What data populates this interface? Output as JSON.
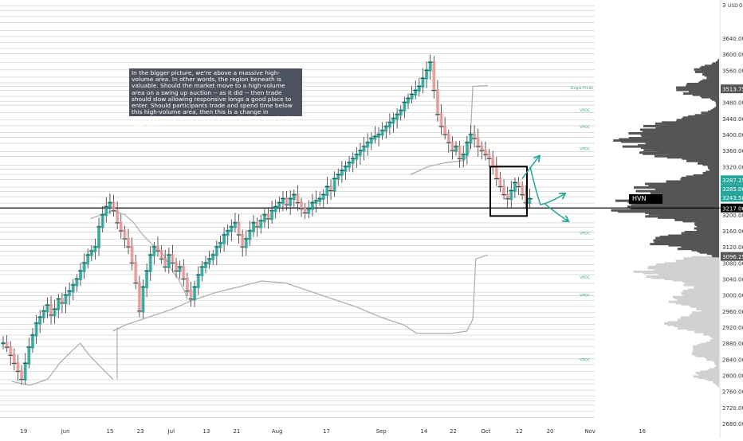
{
  "annotation_text": "In the bigger picture, we're above a massive high-volume area. In other words, the region beneath is valuable. Should the market move to a high-volume area on a swing up auction -- as it did -- then trade should slow allowing responsive longs a good place to enter. Should participants trade and spend time below this high-volume area, then this is a change in perception and longs should be avoided, at least in the near term.",
  "hvn_label": "HVN",
  "single_prints_label": "Single Prints",
  "vpoc_label": "VPOC",
  "top_right_label": "3",
  "currency_label": "USD",
  "top_right_value": "0",
  "colors": {
    "up_candle": "#26a69a",
    "down_candle": "#ef9a9a",
    "profile_dark": "#555555",
    "profile_light": "#d0d0d0",
    "va_line": "#b0b0b0",
    "level_line": "#c8c8c8",
    "accent_teal": "#26a69a"
  },
  "chart_data": {
    "type": "candlestick",
    "y_axis": {
      "range": [
        2670,
        3740
      ],
      "tick_labels": [
        "3640.00",
        "3600.00",
        "3560.00",
        "3520.00",
        "3480.00",
        "3440.00",
        "3400.00",
        "3360.00",
        "3320.00",
        "3280.00",
        "3240.00",
        "3200.00",
        "3160.00",
        "3120.00",
        "3080.00",
        "3040.00",
        "3000.00",
        "2960.00",
        "2920.00",
        "2880.00",
        "2840.00",
        "2800.00",
        "2760.00",
        "2720.00",
        "2680.00"
      ],
      "tick_values": [
        3640,
        3600,
        3560,
        3520,
        3480,
        3440,
        3400,
        3360,
        3320,
        3280,
        3240,
        3200,
        3160,
        3120,
        3080,
        3040,
        3000,
        2960,
        2920,
        2880,
        2840,
        2800,
        2760,
        2720,
        2680
      ]
    },
    "x_axis": {
      "tick_labels": [
        "19",
        "Jun",
        "15",
        "23",
        "Jul",
        "13",
        "21",
        "Aug",
        "17",
        "Sep",
        "14",
        "22",
        "Oct",
        "12",
        "20",
        "Nov",
        "16"
      ],
      "tick_positions": [
        0.04,
        0.11,
        0.185,
        0.236,
        0.288,
        0.347,
        0.398,
        0.466,
        0.549,
        0.641,
        0.713,
        0.762,
        0.817,
        0.873,
        0.925,
        0.992,
        1.08
      ]
    },
    "price_badges": [
      {
        "label": "3513.75",
        "value": 3513.75,
        "color": "#555555"
      },
      {
        "label": "3287.25",
        "value": 3287.25,
        "color": "#26a69a"
      },
      {
        "label": "3285.00",
        "value": 3265,
        "color": "#26a69a"
      },
      {
        "label": "3243.50",
        "value": 3243.5,
        "color": "#26a69a"
      },
      {
        "label": "3217.00",
        "value": 3217,
        "color": "#000000"
      },
      {
        "label": "3096.25",
        "value": 3096.25,
        "color": "#555555"
      }
    ],
    "series": [
      {
        "values": [
          2880,
          2870,
          2850,
          2830,
          2810,
          2790,
          2830,
          2870,
          2900,
          2930,
          2945,
          2960,
          2975,
          2950,
          2965,
          2990,
          2980,
          3000,
          3010,
          3025,
          3040,
          3060,
          3080,
          3100,
          3110,
          3120,
          3170,
          3200,
          3220,
          3230,
          3210,
          3180,
          3160,
          3140,
          3120,
          3080,
          3030,
          2960,
          3020,
          3060,
          3100,
          3120,
          3110,
          3090,
          3070,
          3100,
          3080,
          3060,
          3070,
          3040,
          3010,
          2990,
          3020,
          3050,
          3070,
          3080,
          3090,
          3100,
          3120,
          3130,
          3150,
          3160,
          3170,
          3180,
          3150,
          3120,
          3140,
          3160,
          3180,
          3170,
          3185,
          3200,
          3190,
          3210,
          3220,
          3230,
          3240,
          3225,
          3240,
          3250,
          3230,
          3215,
          3205,
          3215,
          3230,
          3235,
          3240,
          3250,
          3270,
          3260,
          3290,
          3300,
          3310,
          3320,
          3330,
          3340,
          3350,
          3360,
          3370,
          3380,
          3390,
          3395,
          3400,
          3410,
          3420,
          3430,
          3440,
          3450,
          3460,
          3480,
          3490,
          3500,
          3510,
          3520,
          3540,
          3560,
          3580,
          3510,
          3450,
          3420,
          3400,
          3380,
          3360,
          3370,
          3340,
          3350,
          3380,
          3400,
          3390,
          3370,
          3360,
          3350,
          3340,
          3320,
          3290,
          3270,
          3250,
          3240,
          3260,
          3280,
          3270,
          3250,
          3230,
          3240
        ]
      }
    ],
    "vwap_profile": [
      {
        "x": 0.02,
        "v": 2785
      },
      {
        "x": 0.05,
        "v": 2775
      },
      {
        "x": 0.08,
        "v": 2790
      },
      {
        "x": 0.1,
        "v": 2830
      },
      {
        "x": 0.12,
        "v": 2860
      },
      {
        "x": 0.135,
        "v": 2880
      },
      {
        "x": 0.15,
        "v": 2850
      },
      {
        "x": 0.17,
        "v": 2820
      },
      {
        "x": 0.19,
        "v": 2790
      }
    ],
    "va_upper": [
      {
        "x": 0.152,
        "v": 3190
      },
      {
        "x": 0.17,
        "v": 3200
      },
      {
        "x": 0.19,
        "v": 3210
      },
      {
        "x": 0.21,
        "v": 3200
      },
      {
        "x": 0.225,
        "v": 3180
      },
      {
        "x": 0.24,
        "v": 3150
      },
      {
        "x": 0.26,
        "v": 3120
      },
      {
        "x": 0.275,
        "v": 3100
      },
      {
        "x": 0.29,
        "v": 3060
      },
      {
        "x": 0.3,
        "v": 3040
      },
      {
        "x": 0.31,
        "v": 3010
      },
      {
        "x": 0.315,
        "v": 2990
      }
    ],
    "va_lower": [
      {
        "x": 0.19,
        "v": 2910
      },
      {
        "x": 0.21,
        "v": 2925
      },
      {
        "x": 0.23,
        "v": 2935
      },
      {
        "x": 0.26,
        "v": 2950
      },
      {
        "x": 0.29,
        "v": 2965
      },
      {
        "x": 0.32,
        "v": 2985
      },
      {
        "x": 0.36,
        "v": 3005
      },
      {
        "x": 0.4,
        "v": 3020
      },
      {
        "x": 0.44,
        "v": 3035
      },
      {
        "x": 0.48,
        "v": 3030
      },
      {
        "x": 0.52,
        "v": 3010
      },
      {
        "x": 0.56,
        "v": 2990
      },
      {
        "x": 0.6,
        "v": 2970
      },
      {
        "x": 0.64,
        "v": 2945
      },
      {
        "x": 0.68,
        "v": 2925
      },
      {
        "x": 0.7,
        "v": 2905
      },
      {
        "x": 0.73,
        "v": 2905
      },
      {
        "x": 0.76,
        "v": 2905
      },
      {
        "x": 0.785,
        "v": 2910
      },
      {
        "x": 0.795,
        "v": 2940
      },
      {
        "x": 0.8,
        "v": 3090
      },
      {
        "x": 0.82,
        "v": 3100
      }
    ],
    "sep_upper": [
      {
        "x": 0.69,
        "v": 3300
      },
      {
        "x": 0.72,
        "v": 3320
      },
      {
        "x": 0.75,
        "v": 3330
      },
      {
        "x": 0.78,
        "v": 3335
      },
      {
        "x": 0.79,
        "v": 3360
      },
      {
        "x": 0.795,
        "v": 3520
      },
      {
        "x": 0.82,
        "v": 3522
      }
    ],
    "vpoc_levels": [
      {
        "label": "VPOC",
        "v": 3461
      },
      {
        "label": "VPOC",
        "v": 3420
      },
      {
        "label": "VPOC",
        "v": 3365
      },
      {
        "label": "VPOC",
        "v": 3155
      },
      {
        "label": "VPOC",
        "v": 3045
      },
      {
        "label": "VPOC",
        "v": 3000
      },
      {
        "label": "VPOC",
        "v": 2840
      }
    ],
    "single_prints_level": 3517,
    "hvn_level": 3217,
    "focus_box": {
      "v_top": 3320,
      "v_bottom": 3197
    },
    "arrows": [
      {
        "name": "up",
        "to_v": 3345
      },
      {
        "name": "mid",
        "to_v": 3250
      },
      {
        "name": "down",
        "to_v": 3185
      }
    ]
  }
}
